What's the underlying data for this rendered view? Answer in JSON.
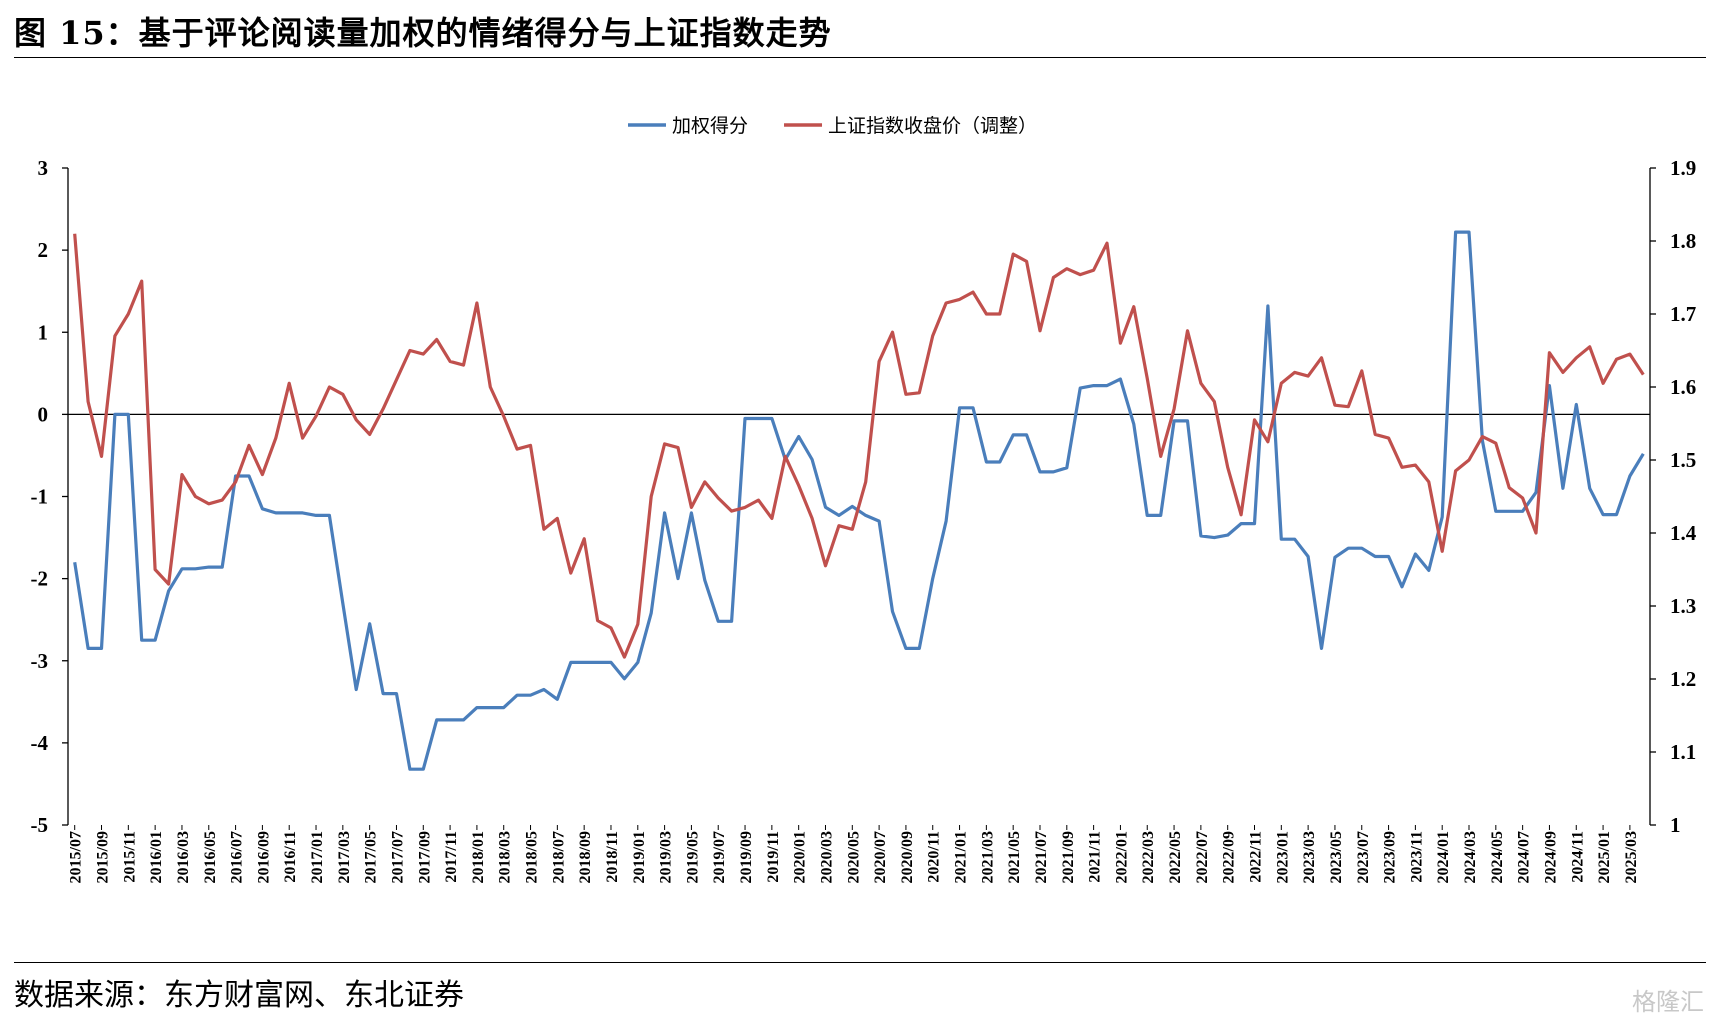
{
  "header": {
    "title": "图  15：基于评论阅读量加权的情绪得分与上证指数走势"
  },
  "footer": {
    "source": "数据来源：东方财富网、东北证券",
    "watermark": "格隆汇"
  },
  "chart_data": {
    "type": "line",
    "title": "",
    "legend_position": "top-center",
    "grid": false,
    "x_tick_labels": [
      "2015/07",
      "2015/09",
      "2015/11",
      "2016/01",
      "2016/03",
      "2016/05",
      "2016/07",
      "2016/09",
      "2016/11",
      "2017/01",
      "2017/03",
      "2017/05",
      "2017/07",
      "2017/09",
      "2017/11",
      "2018/01",
      "2018/03",
      "2018/05",
      "2018/07",
      "2018/09",
      "2018/11",
      "2019/01",
      "2019/03",
      "2019/05",
      "2019/07",
      "2019/09",
      "2019/11",
      "2020/01",
      "2020/03",
      "2020/05",
      "2020/07",
      "2020/09",
      "2020/11",
      "2021/01",
      "2021/03",
      "2021/05",
      "2021/07",
      "2021/09",
      "2021/11",
      "2022/01",
      "2022/03",
      "2022/05",
      "2022/07",
      "2022/09",
      "2022/11",
      "2023/01",
      "2023/03",
      "2023/05",
      "2023/07",
      "2023/09",
      "2023/11",
      "2024/01",
      "2024/03",
      "2024/05",
      "2024/07",
      "2024/09",
      "2024/11",
      "2025/01",
      "2025/03"
    ],
    "y_left": {
      "ticks": [
        "3",
        "2",
        "1",
        "0",
        "-1",
        "-2",
        "-3",
        "-4",
        "-5"
      ],
      "range": [
        -5,
        3
      ]
    },
    "y_right": {
      "ticks": [
        "1.9",
        "1.8",
        "1.7",
        "1.6",
        "1.5",
        "1.4",
        "1.3",
        "1.2",
        "1.1",
        "1"
      ],
      "range": [
        1.0,
        1.9
      ]
    },
    "series": [
      {
        "name": "加权得分",
        "axis": "left",
        "color": "#4a7ebb",
        "values": [
          -1.8,
          -2.85,
          -2.85,
          0.0,
          0.0,
          -2.75,
          -2.75,
          -2.15,
          -1.88,
          -1.88,
          -1.86,
          -1.86,
          -0.75,
          -0.75,
          -1.15,
          -1.2,
          -1.2,
          -1.2,
          -1.23,
          -1.23,
          -2.3,
          -3.35,
          -2.55,
          -3.4,
          -3.4,
          -4.32,
          -4.32,
          -3.72,
          -3.72,
          -3.72,
          -3.57,
          -3.57,
          -3.57,
          -3.42,
          -3.42,
          -3.35,
          -3.47,
          -3.02,
          -3.02,
          -3.02,
          -3.02,
          -3.22,
          -3.02,
          -2.42,
          -1.2,
          -2.0,
          -1.2,
          -2.02,
          -2.52,
          -2.52,
          -0.05,
          -0.05,
          -0.05,
          -0.55,
          -0.27,
          -0.55,
          -1.13,
          -1.23,
          -1.12,
          -1.23,
          -1.3,
          -2.4,
          -2.85,
          -2.85,
          -2.0,
          -1.3,
          0.08,
          0.08,
          -0.58,
          -0.58,
          -0.25,
          -0.25,
          -0.7,
          -0.7,
          -0.65,
          0.32,
          0.35,
          0.35,
          0.43,
          -0.12,
          -1.23,
          -1.23,
          -0.08,
          -0.08,
          -1.48,
          -1.5,
          -1.47,
          -1.33,
          -1.33,
          1.32,
          -1.52,
          -1.52,
          -1.73,
          -2.85,
          -1.74,
          -1.63,
          -1.63,
          -1.73,
          -1.73,
          -2.1,
          -1.7,
          -1.9,
          -1.25,
          2.22,
          2.22,
          -0.32,
          -1.18,
          -1.18,
          -1.18,
          -0.95,
          0.35,
          -0.9,
          0.12,
          -0.9,
          -1.22,
          -1.22,
          -0.75,
          -0.48
        ]
      },
      {
        "name": "上证指数收盘价（调整）",
        "axis": "right",
        "color": "#c0504d",
        "values": [
          1.81,
          1.58,
          1.505,
          1.67,
          1.7,
          1.745,
          1.35,
          1.33,
          1.48,
          1.45,
          1.44,
          1.445,
          1.47,
          1.52,
          1.48,
          1.53,
          1.605,
          1.53,
          1.56,
          1.6,
          1.59,
          1.555,
          1.535,
          1.57,
          1.61,
          1.65,
          1.645,
          1.665,
          1.635,
          1.63,
          1.715,
          1.6,
          1.56,
          1.515,
          1.52,
          1.405,
          1.42,
          1.345,
          1.392,
          1.28,
          1.27,
          1.23,
          1.275,
          1.45,
          1.522,
          1.517,
          1.435,
          1.47,
          1.448,
          1.43,
          1.435,
          1.445,
          1.42,
          1.505,
          1.465,
          1.42,
          1.355,
          1.41,
          1.405,
          1.47,
          1.635,
          1.675,
          1.59,
          1.592,
          1.67,
          1.715,
          1.72,
          1.73,
          1.7,
          1.7,
          1.782,
          1.772,
          1.677,
          1.75,
          1.762,
          1.754,
          1.76,
          1.797,
          1.66,
          1.71,
          1.612,
          1.505,
          1.57,
          1.677,
          1.605,
          1.58,
          1.49,
          1.425,
          1.555,
          1.525,
          1.605,
          1.62,
          1.615,
          1.64,
          1.575,
          1.573,
          1.622,
          1.535,
          1.53,
          1.49,
          1.493,
          1.47,
          1.375,
          1.485,
          1.5,
          1.532,
          1.523,
          1.462,
          1.448,
          1.4,
          1.647,
          1.62,
          1.64,
          1.655,
          1.605,
          1.638,
          1.645,
          1.617
        ]
      }
    ]
  }
}
